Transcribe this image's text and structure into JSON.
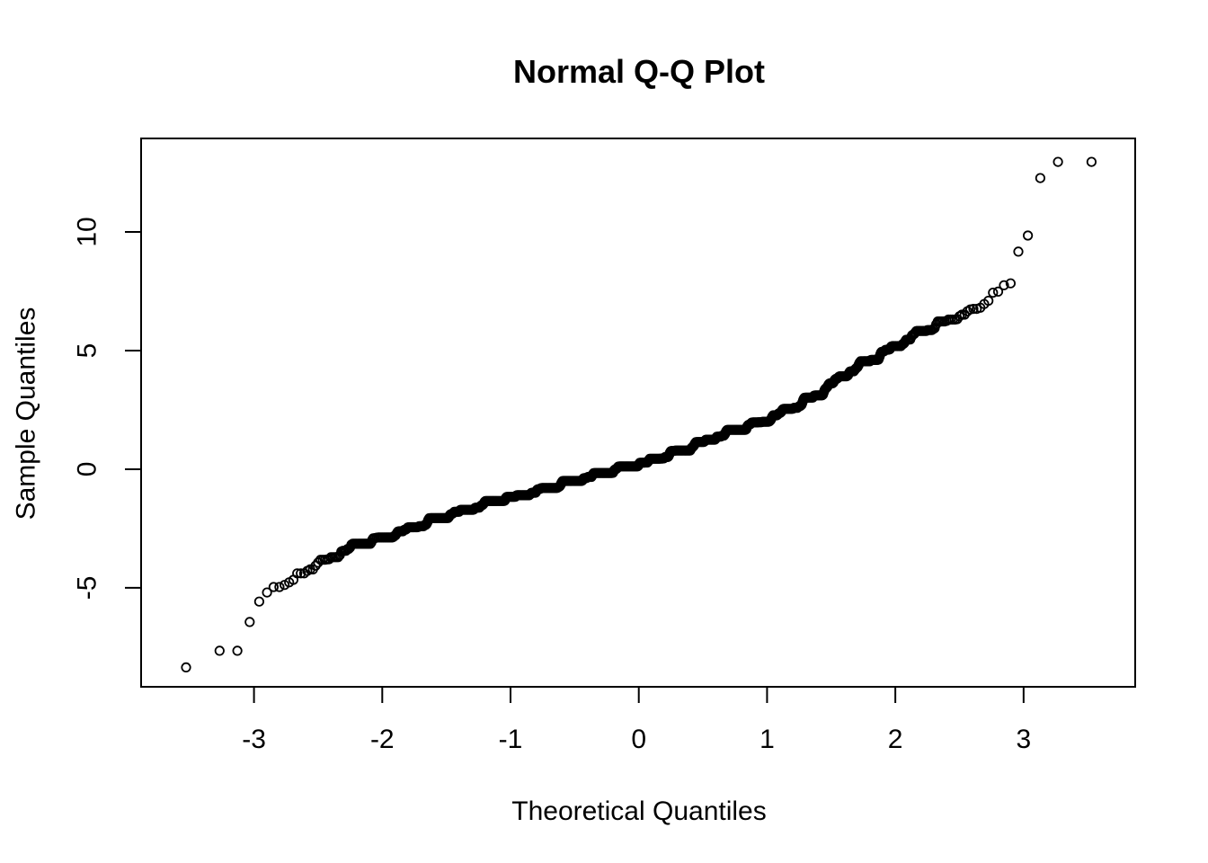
{
  "figure": {
    "title": "Normal Q-Q Plot"
  },
  "colors": {
    "foreground": "#000000",
    "background": "#ffffff"
  },
  "chart_data": {
    "type": "scatter",
    "variant": "normal-qq-plot",
    "title": "Normal Q-Q Plot",
    "xlabel": "Theoretical Quantiles",
    "ylabel": "Sample Quantiles",
    "x_tick_values": [
      -3,
      -2,
      -1,
      0,
      1,
      2,
      3
    ],
    "x_tick_labels": [
      "-3",
      "-2",
      "-1",
      "0",
      "1",
      "2",
      "3"
    ],
    "y_tick_values": [
      -5,
      0,
      5,
      10
    ],
    "y_tick_labels": [
      "-5",
      "0",
      "5",
      "10"
    ],
    "xlim": [
      -3.88,
      3.87
    ],
    "ylim": [
      -9.17,
      13.94
    ],
    "grid": false,
    "marker": {
      "shape": "open-circle",
      "color": "#000000",
      "radius_px": 4.7,
      "stroke_px": 1.8
    },
    "n_points": 3000,
    "quantile_curve_anchors": [
      [
        -3.88,
        -8.6
      ],
      [
        -3.66,
        -8.33
      ],
      [
        -3.31,
        -7.65
      ],
      [
        -3.16,
        -7.6
      ],
      [
        -3.05,
        -6.44
      ],
      [
        -2.97,
        -5.5
      ],
      [
        -2.91,
        -5.3
      ],
      [
        -2.85,
        -5.05
      ],
      [
        -2.78,
        -4.88
      ],
      [
        -2.7,
        -4.68
      ],
      [
        -2.62,
        -4.4
      ],
      [
        -2.53,
        -4.05
      ],
      [
        -2.44,
        -3.9
      ],
      [
        -2.33,
        -3.55
      ],
      [
        -2.2,
        -3.26
      ],
      [
        -2.0,
        -2.95
      ],
      [
        -1.8,
        -2.6
      ],
      [
        -1.6,
        -2.2
      ],
      [
        -1.4,
        -1.85
      ],
      [
        -1.2,
        -1.55
      ],
      [
        -1.0,
        -1.28
      ],
      [
        -0.8,
        -1.0
      ],
      [
        -0.6,
        -0.7
      ],
      [
        -0.4,
        -0.4
      ],
      [
        -0.2,
        -0.12
      ],
      [
        0.0,
        0.12
      ],
      [
        0.2,
        0.5
      ],
      [
        0.4,
        0.88
      ],
      [
        0.6,
        1.3
      ],
      [
        0.8,
        1.65
      ],
      [
        1.0,
        2.05
      ],
      [
        1.2,
        2.55
      ],
      [
        1.4,
        3.15
      ],
      [
        1.6,
        3.95
      ],
      [
        1.8,
        4.55
      ],
      [
        2.0,
        5.15
      ],
      [
        2.2,
        5.75
      ],
      [
        2.4,
        6.2
      ],
      [
        2.6,
        6.65
      ],
      [
        2.75,
        7.2
      ],
      [
        2.91,
        8.03
      ]
    ],
    "low_tail_values": [
      -8.35,
      -7.65,
      -7.65,
      -6.44
    ],
    "high_tail_values": [
      9.17,
      9.85,
      12.27,
      12.95,
      12.95
    ]
  }
}
